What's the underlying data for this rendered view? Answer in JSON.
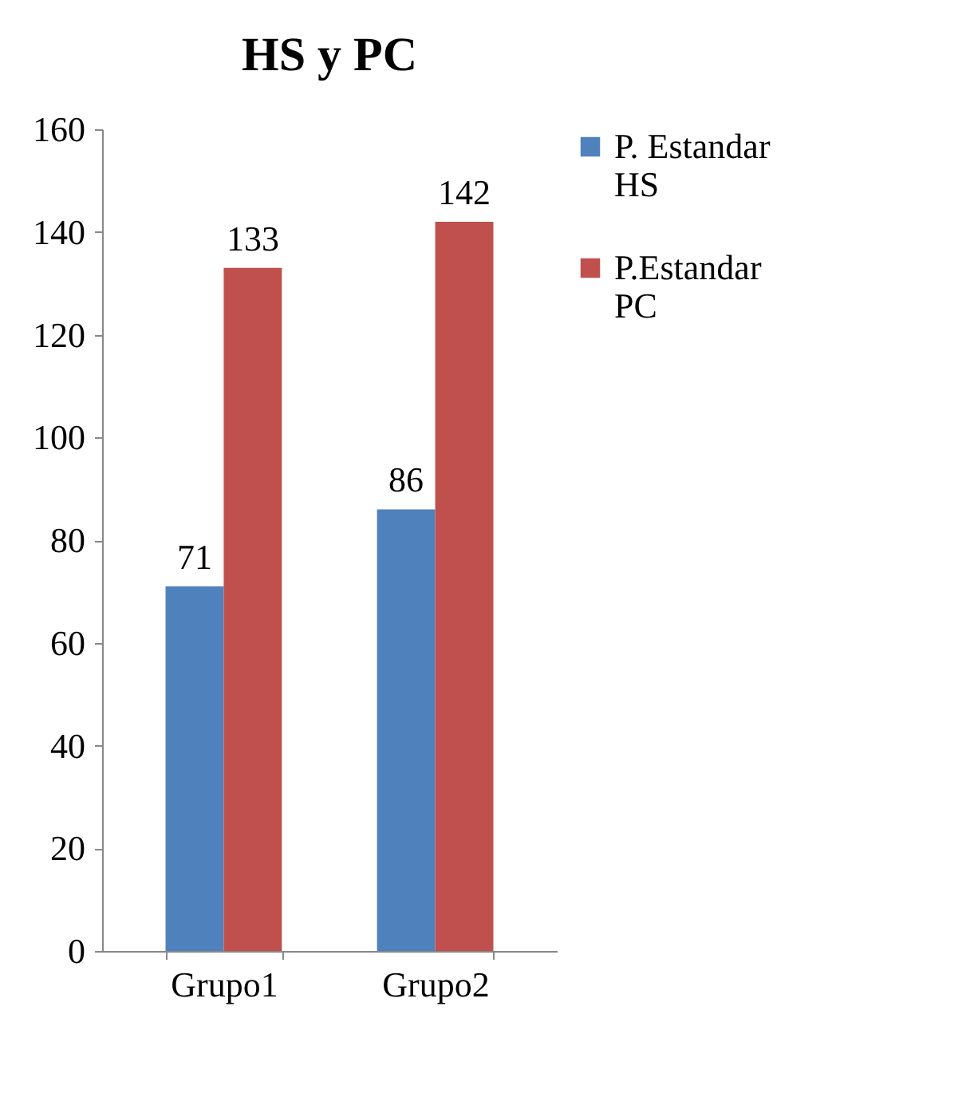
{
  "chart_data": {
    "type": "bar",
    "title": "HS y PC",
    "categories": [
      "Grupo1",
      "Grupo2"
    ],
    "series": [
      {
        "name": "P. Estandar HS",
        "color": "#4f81bd",
        "values": [
          71,
          86
        ]
      },
      {
        "name": "P.Estandar PC",
        "color": "#c0504d",
        "values": [
          133,
          142
        ]
      }
    ],
    "ylim": [
      0,
      160
    ],
    "yticks": [
      0,
      20,
      40,
      60,
      80,
      100,
      120,
      140,
      160
    ],
    "data_labels": true,
    "legend": "right",
    "grid": false
  }
}
